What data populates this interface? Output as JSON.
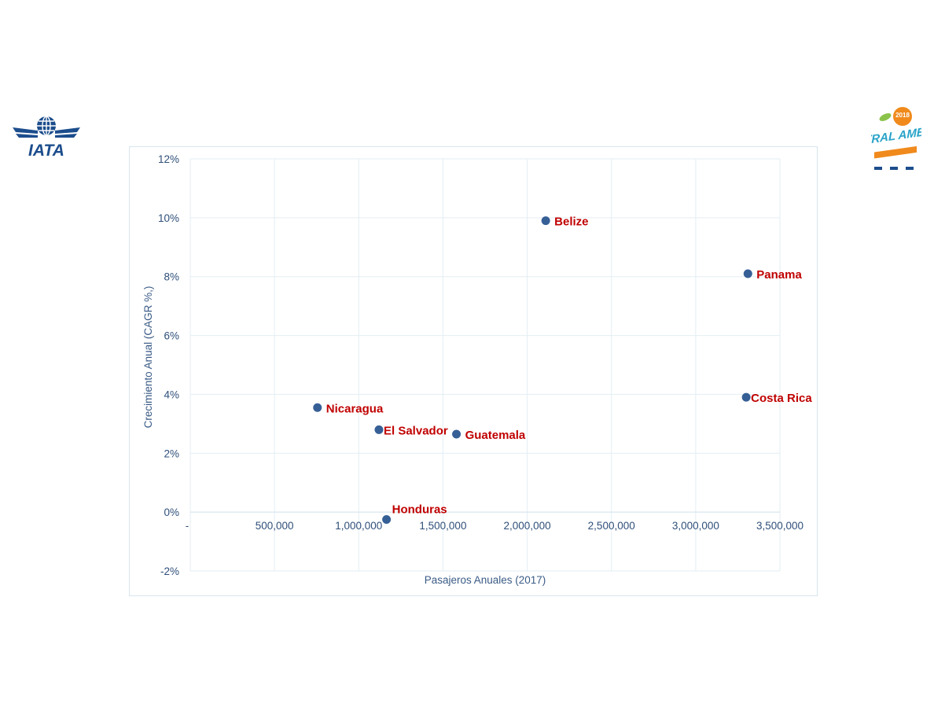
{
  "logos": {
    "left": {
      "name": "iata-logo",
      "text": "IATA",
      "color": "#1c4d8c"
    },
    "right": {
      "name": "aviation-day-central-america-logo",
      "text": "CENTRAL AMERICA",
      "year": "2018",
      "color": "#29a3c8",
      "accent": "#f08a1c"
    }
  },
  "chart_data": {
    "type": "scatter",
    "title": "",
    "xlabel": "Pasajeros Anuales (2017)",
    "ylabel": "Crecimiento Anual (CAGR %,)",
    "xlim": [
      0,
      3500000
    ],
    "ylim": [
      -0.02,
      0.12
    ],
    "x_ticks": [
      0,
      500000,
      1000000,
      1500000,
      2000000,
      2500000,
      3000000,
      3500000
    ],
    "x_tick_labels": [
      "-",
      "500,000",
      "1,000,000",
      "1,500,000",
      "2,000,000",
      "2,500,000",
      "3,000,000",
      "3,500,000"
    ],
    "y_ticks": [
      -0.02,
      0,
      0.02,
      0.04,
      0.06,
      0.08,
      0.1,
      0.12
    ],
    "y_tick_labels": [
      "-2%",
      "0%",
      "2%",
      "4%",
      "6%",
      "8%",
      "10%",
      "12%"
    ],
    "grid": true,
    "marker_color": "#365f96",
    "label_color": "#c00000",
    "points": [
      {
        "label": "Belize",
        "x": 2110000,
        "y": 0.099,
        "label_pos": "right"
      },
      {
        "label": "Panama",
        "x": 3310000,
        "y": 0.081,
        "label_pos": "right"
      },
      {
        "label": "Costa Rica",
        "x": 3300000,
        "y": 0.039,
        "label_pos": "right"
      },
      {
        "label": "Nicaragua",
        "x": 755000,
        "y": 0.0355,
        "label_pos": "right"
      },
      {
        "label": "El Salvador",
        "x": 1120000,
        "y": 0.028,
        "label_pos": "right"
      },
      {
        "label": "Guatemala",
        "x": 1580000,
        "y": 0.0265,
        "label_pos": "right"
      },
      {
        "label": "Honduras",
        "x": 1165000,
        "y": -0.0025,
        "label_pos": "above"
      }
    ]
  }
}
